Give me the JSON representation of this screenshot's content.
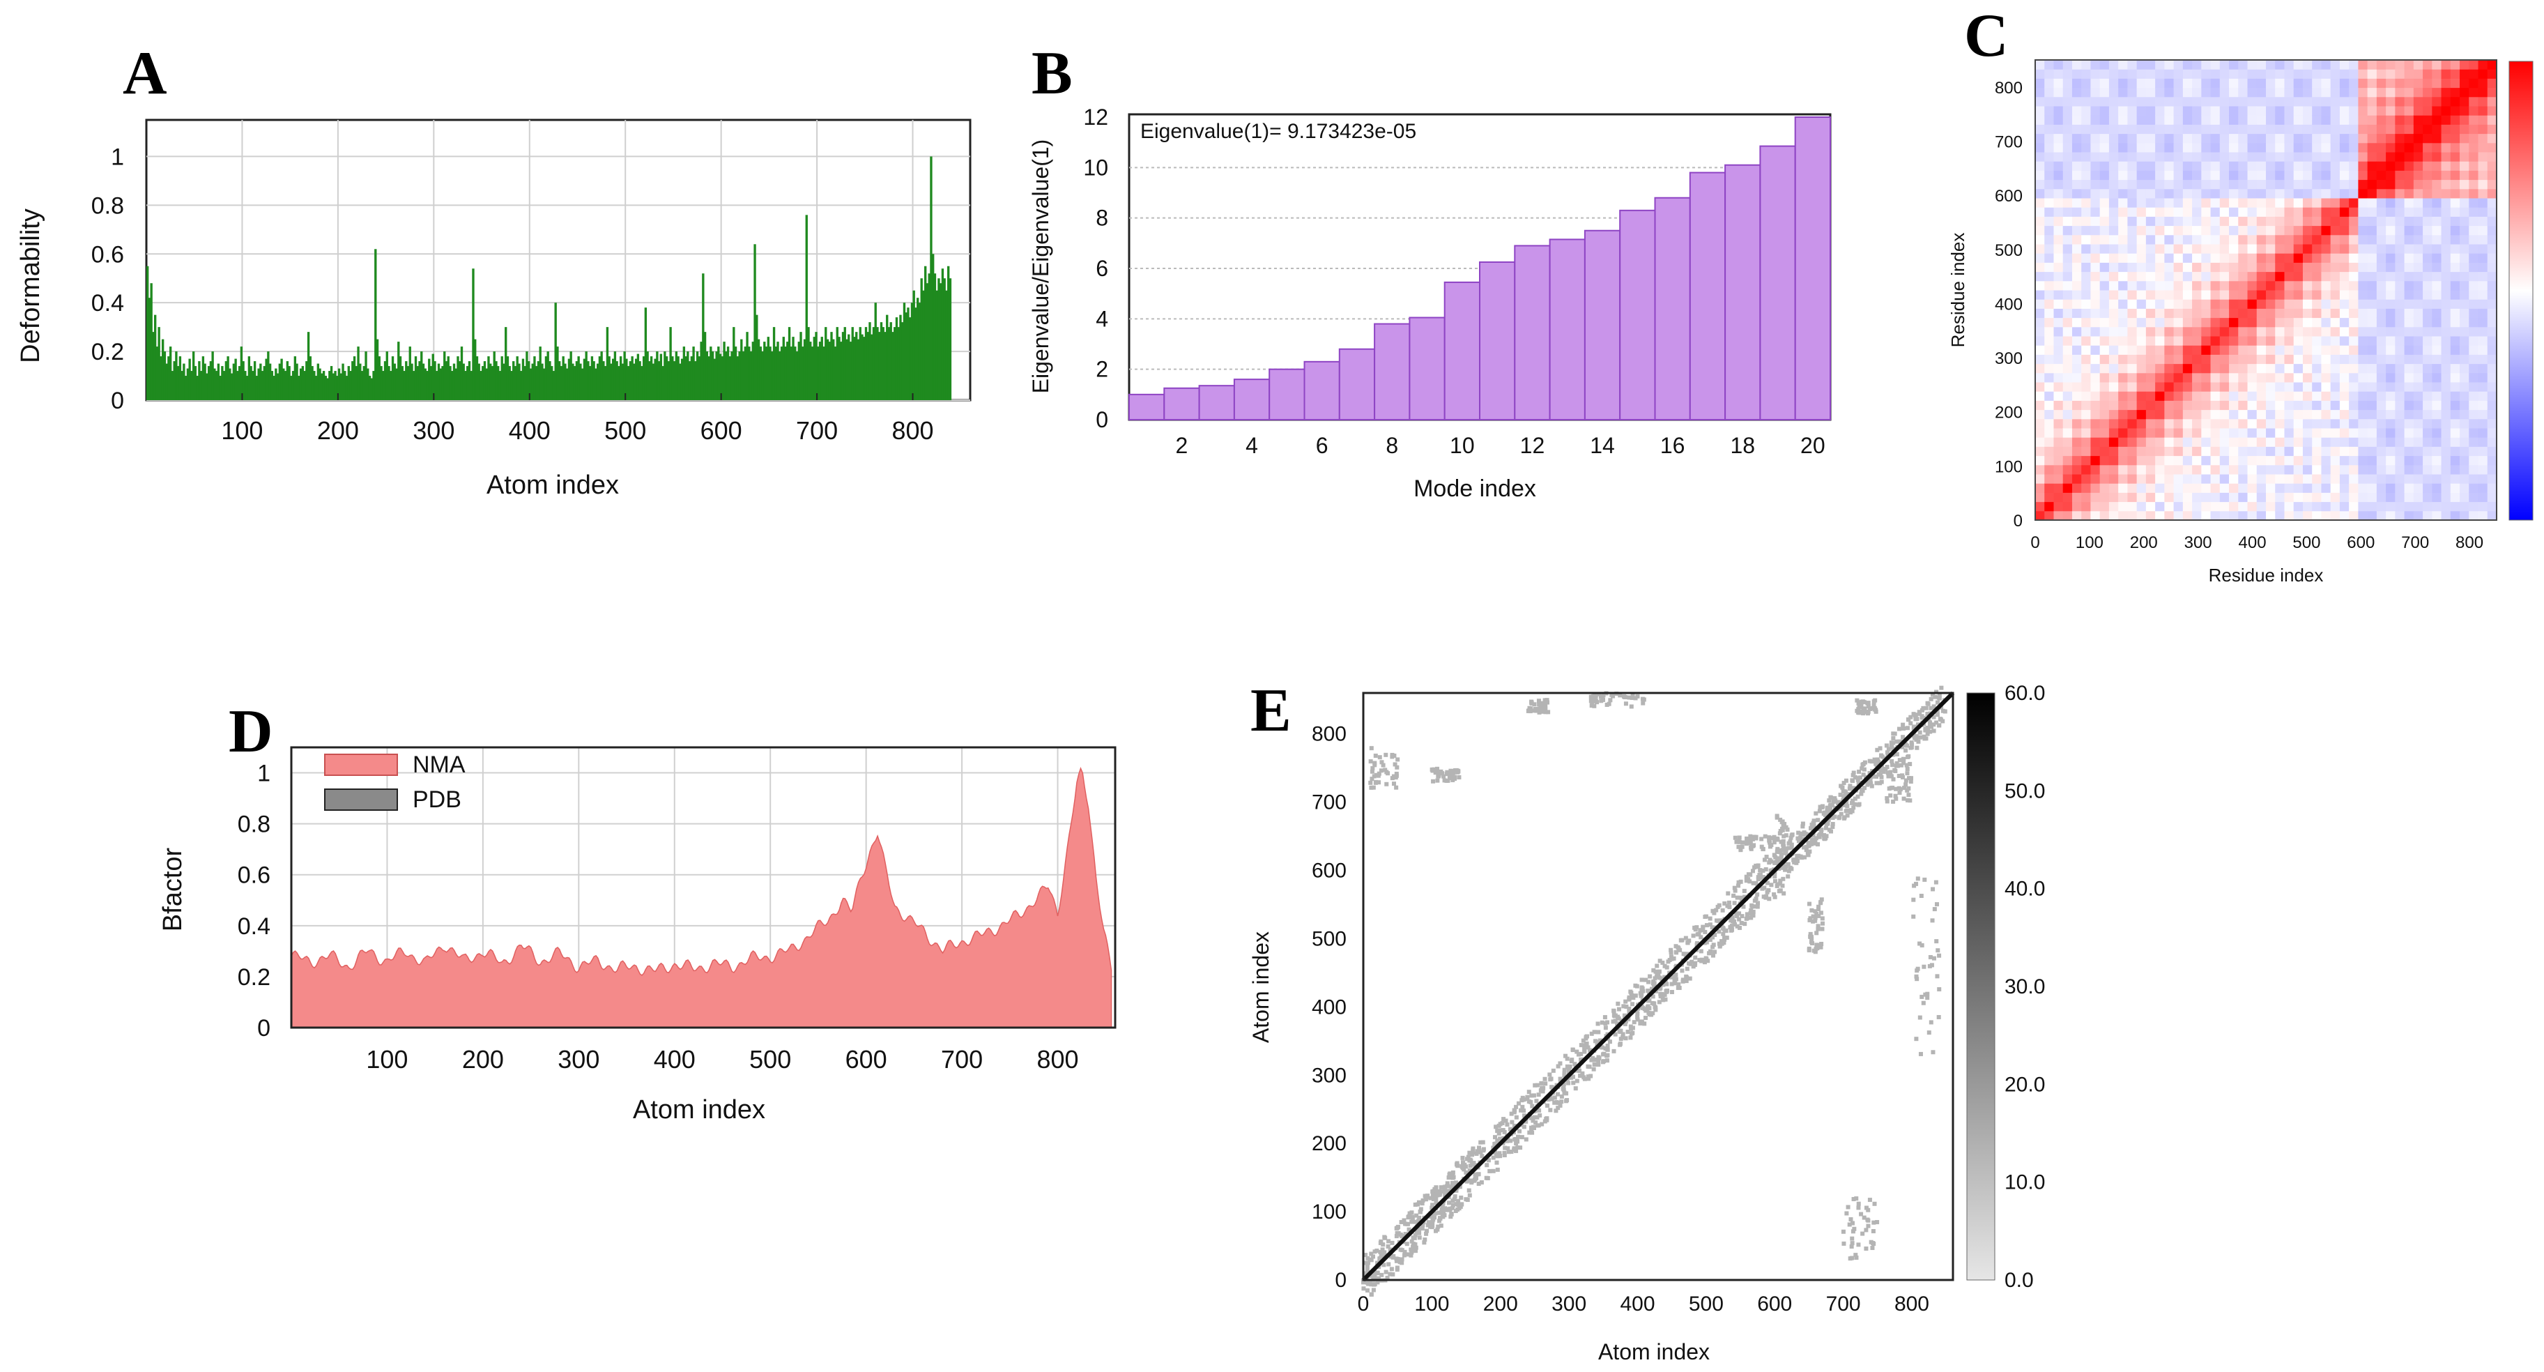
{
  "chart_data": [
    {
      "id": "A",
      "letter": "A",
      "type": "bar",
      "title": "",
      "xlabel": "Atom index",
      "ylabel": "Deformability",
      "xlim": [
        0,
        860
      ],
      "ylim": [
        0,
        1.15
      ],
      "xticks": [
        100,
        200,
        300,
        400,
        500,
        600,
        700,
        800
      ],
      "yticks": [
        0,
        0.2,
        0.4,
        0.6,
        0.8,
        1
      ],
      "ytick_labels": [
        "0",
        "0.2",
        "0.4",
        "0.6",
        "0.8",
        "1"
      ],
      "grid": true,
      "color": "#1f8a1f",
      "x_step": 2,
      "y": [
        0.55,
        0.42,
        0.48,
        0.28,
        0.35,
        0.22,
        0.3,
        0.18,
        0.25,
        0.2,
        0.15,
        0.18,
        0.22,
        0.12,
        0.16,
        0.2,
        0.14,
        0.18,
        0.12,
        0.15,
        0.1,
        0.13,
        0.17,
        0.12,
        0.2,
        0.14,
        0.1,
        0.16,
        0.12,
        0.18,
        0.15,
        0.11,
        0.14,
        0.16,
        0.2,
        0.13,
        0.12,
        0.15,
        0.1,
        0.14,
        0.12,
        0.16,
        0.18,
        0.13,
        0.11,
        0.15,
        0.17,
        0.12,
        0.14,
        0.22,
        0.16,
        0.12,
        0.1,
        0.18,
        0.14,
        0.12,
        0.16,
        0.1,
        0.13,
        0.15,
        0.12,
        0.14,
        0.17,
        0.2,
        0.15,
        0.12,
        0.1,
        0.13,
        0.11,
        0.15,
        0.17,
        0.13,
        0.12,
        0.16,
        0.14,
        0.1,
        0.12,
        0.18,
        0.15,
        0.1,
        0.13,
        0.14,
        0.12,
        0.16,
        0.28,
        0.18,
        0.14,
        0.12,
        0.1,
        0.15,
        0.13,
        0.11,
        0.12,
        0.1,
        0.09,
        0.12,
        0.14,
        0.11,
        0.12,
        0.1,
        0.13,
        0.11,
        0.15,
        0.12,
        0.1,
        0.14,
        0.12,
        0.16,
        0.18,
        0.14,
        0.22,
        0.15,
        0.12,
        0.14,
        0.2,
        0.13,
        0.1,
        0.09,
        0.12,
        0.62,
        0.25,
        0.18,
        0.14,
        0.12,
        0.16,
        0.2,
        0.14,
        0.12,
        0.18,
        0.15,
        0.13,
        0.24,
        0.18,
        0.14,
        0.12,
        0.16,
        0.14,
        0.22,
        0.15,
        0.12,
        0.18,
        0.14,
        0.16,
        0.2,
        0.15,
        0.13,
        0.12,
        0.17,
        0.14,
        0.19,
        0.16,
        0.12,
        0.15,
        0.13,
        0.14,
        0.2,
        0.16,
        0.18,
        0.14,
        0.12,
        0.15,
        0.13,
        0.18,
        0.16,
        0.22,
        0.15,
        0.12,
        0.14,
        0.16,
        0.12,
        0.54,
        0.25,
        0.18,
        0.15,
        0.12,
        0.14,
        0.16,
        0.13,
        0.18,
        0.15,
        0.14,
        0.2,
        0.16,
        0.14,
        0.12,
        0.18,
        0.15,
        0.3,
        0.18,
        0.14,
        0.12,
        0.16,
        0.14,
        0.18,
        0.15,
        0.12,
        0.17,
        0.14,
        0.2,
        0.16,
        0.13,
        0.15,
        0.18,
        0.14,
        0.16,
        0.22,
        0.15,
        0.13,
        0.18,
        0.2,
        0.16,
        0.14,
        0.12,
        0.4,
        0.22,
        0.16,
        0.14,
        0.18,
        0.15,
        0.13,
        0.17,
        0.2,
        0.15,
        0.14,
        0.16,
        0.18,
        0.15,
        0.13,
        0.17,
        0.2,
        0.16,
        0.14,
        0.18,
        0.16,
        0.13,
        0.15,
        0.18,
        0.2,
        0.16,
        0.14,
        0.3,
        0.18,
        0.15,
        0.17,
        0.2,
        0.16,
        0.14,
        0.18,
        0.15,
        0.2,
        0.17,
        0.14,
        0.16,
        0.18,
        0.15,
        0.17,
        0.19,
        0.16,
        0.14,
        0.18,
        0.38,
        0.2,
        0.16,
        0.18,
        0.15,
        0.17,
        0.2,
        0.16,
        0.19,
        0.14,
        0.2,
        0.18,
        0.16,
        0.3,
        0.18,
        0.16,
        0.2,
        0.18,
        0.15,
        0.17,
        0.22,
        0.18,
        0.2,
        0.16,
        0.18,
        0.22,
        0.16,
        0.2,
        0.18,
        0.24,
        0.52,
        0.28,
        0.2,
        0.18,
        0.22,
        0.2,
        0.17,
        0.2,
        0.22,
        0.19,
        0.18,
        0.24,
        0.2,
        0.22,
        0.18,
        0.2,
        0.3,
        0.22,
        0.18,
        0.2,
        0.25,
        0.2,
        0.22,
        0.28,
        0.22,
        0.2,
        0.24,
        0.64,
        0.35,
        0.25,
        0.22,
        0.2,
        0.24,
        0.22,
        0.26,
        0.22,
        0.2,
        0.3,
        0.22,
        0.24,
        0.2,
        0.22,
        0.26,
        0.22,
        0.24,
        0.3,
        0.22,
        0.26,
        0.22,
        0.2,
        0.24,
        0.28,
        0.22,
        0.25,
        0.76,
        0.3,
        0.24,
        0.22,
        0.26,
        0.28,
        0.22,
        0.24,
        0.26,
        0.22,
        0.3,
        0.25,
        0.24,
        0.28,
        0.25,
        0.22,
        0.3,
        0.26,
        0.24,
        0.28,
        0.3,
        0.25,
        0.27,
        0.24,
        0.3,
        0.26,
        0.28,
        0.25,
        0.3,
        0.27,
        0.26,
        0.3,
        0.28,
        0.32,
        0.27,
        0.3,
        0.4,
        0.3,
        0.28,
        0.32,
        0.3,
        0.28,
        0.35,
        0.3,
        0.32,
        0.28,
        0.3,
        0.34,
        0.3,
        0.35,
        0.32,
        0.4,
        0.36,
        0.38,
        0.34,
        0.4,
        0.45,
        0.38,
        0.42,
        0.4,
        0.5,
        0.45,
        0.55,
        0.48,
        0.52,
        1.0,
        0.6,
        0.52,
        0.45,
        0.5,
        0.48,
        0.54,
        0.5,
        0.45,
        0.55,
        0.5
      ]
    },
    {
      "id": "B",
      "letter": "B",
      "type": "bar",
      "title": "",
      "xlabel": "Mode index",
      "ylabel": "Eigenvalue/Eigenvalue(1)",
      "annotation": "Eigenvalue(1)= 9.173423e-05",
      "categories": [
        1,
        2,
        3,
        4,
        5,
        6,
        7,
        8,
        9,
        10,
        11,
        12,
        13,
        14,
        15,
        16,
        17,
        18,
        19,
        20
      ],
      "values": [
        1.0,
        1.25,
        1.35,
        1.6,
        2.0,
        2.3,
        2.8,
        3.8,
        4.05,
        5.45,
        6.25,
        6.9,
        7.15,
        7.5,
        8.3,
        8.8,
        9.8,
        10.1,
        10.85,
        12.0
      ],
      "xticks": [
        2,
        4,
        6,
        8,
        10,
        12,
        14,
        16,
        18,
        20
      ],
      "yticks": [
        0,
        2,
        4,
        6,
        8,
        10,
        12
      ],
      "ylim": [
        0,
        12
      ],
      "grid": true,
      "color": "#c994ea",
      "edge": "#8e44c4"
    },
    {
      "id": "C",
      "letter": "C",
      "type": "heatmap",
      "title": "",
      "xlabel": "Residue index",
      "ylabel": "Residue index",
      "xticks": [
        0,
        100,
        200,
        300,
        400,
        500,
        600,
        700,
        800
      ],
      "yticks": [
        0,
        100,
        200,
        300,
        400,
        500,
        600,
        700,
        800
      ],
      "range": [
        0,
        850
      ],
      "blocks": [
        [
          0,
          600
        ],
        [
          600,
          850
        ]
      ],
      "colorscale": [
        "#0000ff",
        "#ffffff",
        "#ff0000"
      ],
      "colorbar_range": [
        -1,
        1
      ]
    },
    {
      "id": "D",
      "letter": "D",
      "type": "area",
      "title": "",
      "xlabel": "Atom index",
      "ylabel": "Bfactor",
      "legend_location": "top-left",
      "series": [
        {
          "name": "NMA",
          "color": "#f48a8a"
        },
        {
          "name": "PDB",
          "color": "#8a8a8a"
        }
      ],
      "xlim": [
        0,
        860
      ],
      "ylim": [
        0,
        1.1
      ],
      "xticks": [
        100,
        200,
        300,
        400,
        500,
        600,
        700,
        800
      ],
      "yticks": [
        0,
        0.2,
        0.4,
        0.6,
        0.8,
        1
      ],
      "ytick_labels": [
        "0",
        "0.2",
        "0.4",
        "0.6",
        "0.8",
        "1"
      ],
      "grid": true,
      "profile": [
        [
          0,
          0.28
        ],
        [
          20,
          0.26
        ],
        [
          40,
          0.28
        ],
        [
          60,
          0.24
        ],
        [
          80,
          0.3
        ],
        [
          100,
          0.26
        ],
        [
          120,
          0.3
        ],
        [
          140,
          0.25
        ],
        [
          160,
          0.33
        ],
        [
          180,
          0.26
        ],
        [
          200,
          0.3
        ],
        [
          220,
          0.25
        ],
        [
          240,
          0.32
        ],
        [
          260,
          0.26
        ],
        [
          280,
          0.29
        ],
        [
          300,
          0.24
        ],
        [
          320,
          0.26
        ],
        [
          340,
          0.23
        ],
        [
          360,
          0.24
        ],
        [
          380,
          0.22
        ],
        [
          400,
          0.25
        ],
        [
          420,
          0.23
        ],
        [
          440,
          0.25
        ],
        [
          460,
          0.24
        ],
        [
          480,
          0.27
        ],
        [
          500,
          0.28
        ],
        [
          520,
          0.3
        ],
        [
          540,
          0.36
        ],
        [
          560,
          0.42
        ],
        [
          575,
          0.5
        ],
        [
          585,
          0.45
        ],
        [
          595,
          0.6
        ],
        [
          605,
          0.7
        ],
        [
          612,
          0.76
        ],
        [
          620,
          0.62
        ],
        [
          630,
          0.48
        ],
        [
          645,
          0.42
        ],
        [
          660,
          0.38
        ],
        [
          680,
          0.3
        ],
        [
          700,
          0.34
        ],
        [
          720,
          0.36
        ],
        [
          740,
          0.4
        ],
        [
          760,
          0.44
        ],
        [
          775,
          0.5
        ],
        [
          790,
          0.55
        ],
        [
          800,
          0.45
        ],
        [
          810,
          0.7
        ],
        [
          820,
          0.95
        ],
        [
          825,
          1.0
        ],
        [
          832,
          0.88
        ],
        [
          840,
          0.6
        ],
        [
          848,
          0.38
        ],
        [
          856,
          0.22
        ]
      ]
    },
    {
      "id": "E",
      "letter": "E",
      "type": "heatmap",
      "title": "",
      "xlabel": "Atom index",
      "ylabel": "Atom index",
      "xticks": [
        0,
        100,
        200,
        300,
        400,
        500,
        600,
        700,
        800
      ],
      "yticks": [
        0,
        100,
        200,
        300,
        400,
        500,
        600,
        700,
        800
      ],
      "range": [
        0,
        860
      ],
      "colorbar_ticks": [
        "60.0",
        "50.0",
        "40.0",
        "30.0",
        "20.0",
        "10.0",
        "0.0"
      ],
      "colorbar_range": [
        0,
        60
      ],
      "colors": {
        "point": "#b4b4b4",
        "diag": "#111111"
      }
    }
  ]
}
